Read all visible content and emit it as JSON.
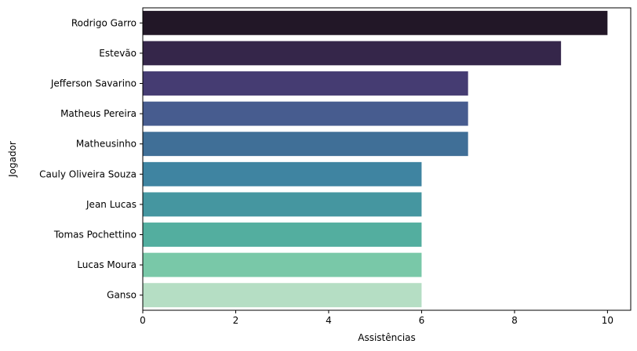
{
  "chart_data": {
    "type": "bar",
    "orientation": "horizontal",
    "xlabel": "Assistências",
    "ylabel": "Jogador",
    "xlim": [
      0,
      10.5
    ],
    "xticks": [
      0,
      2,
      4,
      6,
      8,
      10
    ],
    "grid": false,
    "categories": [
      "Rodrigo Garro",
      "Estevão",
      "Jefferson Savarino",
      "Matheus Pereira",
      "Matheusinho",
      "Cauly Oliveira Souza",
      "Jean Lucas",
      "Tomas Pochettino",
      "Lucas Moura",
      "Ganso"
    ],
    "values": [
      10,
      9,
      7,
      7,
      7,
      6,
      6,
      6,
      6,
      6
    ],
    "colors": [
      "#221727",
      "#35264a",
      "#453c72",
      "#475c8f",
      "#406f97",
      "#3f84a1",
      "#4596a0",
      "#53ae9f",
      "#79c8a8",
      "#b5dec4"
    ]
  }
}
